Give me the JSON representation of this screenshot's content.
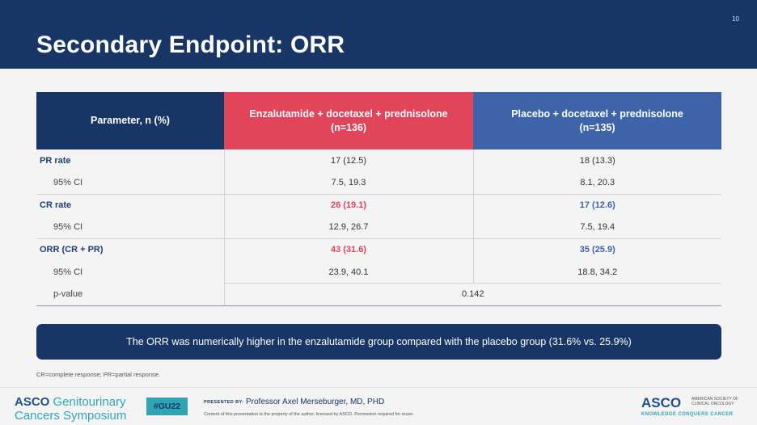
{
  "slide": {
    "page_number": "10",
    "title": "Secondary Endpoint: ORR"
  },
  "table": {
    "headers": {
      "param": "Parameter, n (%)",
      "enza_line1": "Enzalutamide + docetaxel + prednisolone",
      "enza_line2": "(n=136)",
      "placebo_line1": "Placebo + docetaxel + prednisolone",
      "placebo_line2": "(n=135)"
    },
    "rows": [
      {
        "param": "PR rate",
        "enza": "17 (12.5)",
        "placebo": "18 (13.3)"
      },
      {
        "param": "95% CI",
        "enza": "7.5, 19.3",
        "placebo": "8.1, 20.3"
      },
      {
        "param": "CR rate",
        "enza": "26 (19.1)",
        "placebo": "17 (12.6)"
      },
      {
        "param": "95% CI",
        "enza": "12.9, 26.7",
        "placebo": "7.5, 19.4"
      },
      {
        "param": "ORR (CR + PR)",
        "enza": "43 (31.6)",
        "placebo": "35 (25.9)"
      },
      {
        "param": "95% CI",
        "enza": "23.9, 40.1",
        "placebo": "18.8, 34.2"
      },
      {
        "param": "p-value",
        "combined": "0.142"
      }
    ]
  },
  "callout": "The ORR was numerically higher in the enzalutamide group compared with the placebo group (31.6% vs. 25.9%)",
  "footnote": "CR=complete response; PR=partial response.",
  "footer": {
    "asco": "ASCO",
    "genitourinary": "Genitourinary",
    "symposium": "Cancers Symposium",
    "hashtag": "#GU22",
    "presented_by": "PRESENTED BY:",
    "presenter": "Professor Axel Merseburger, MD, PHD",
    "disclaimer": "Content of this presentation is the property of the author, licensed by ASCO. Permission required for reuse.",
    "asco_logo": "ASCO",
    "asco_sub": "AMERICAN SOCIETY OF CLINICAL ONCOLOGY",
    "asco_tagline": "KNOWLEDGE CONQUERS CANCER"
  }
}
